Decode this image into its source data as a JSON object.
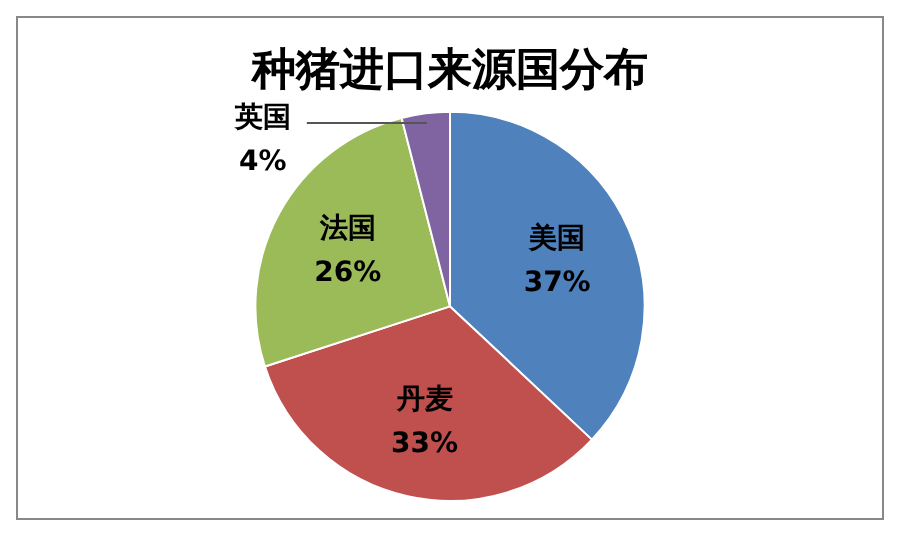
{
  "chart_data": {
    "type": "pie",
    "title": "种猪进口来源国分布",
    "categories": [
      "美国",
      "丹麦",
      "法国",
      "英国"
    ],
    "values": [
      37,
      33,
      26,
      4
    ],
    "value_labels": [
      "37%",
      "33%",
      "26%",
      "4%"
    ],
    "colors": [
      "#4f81bd",
      "#c0504d",
      "#9bbb59",
      "#8064a2"
    ],
    "legend": false
  }
}
